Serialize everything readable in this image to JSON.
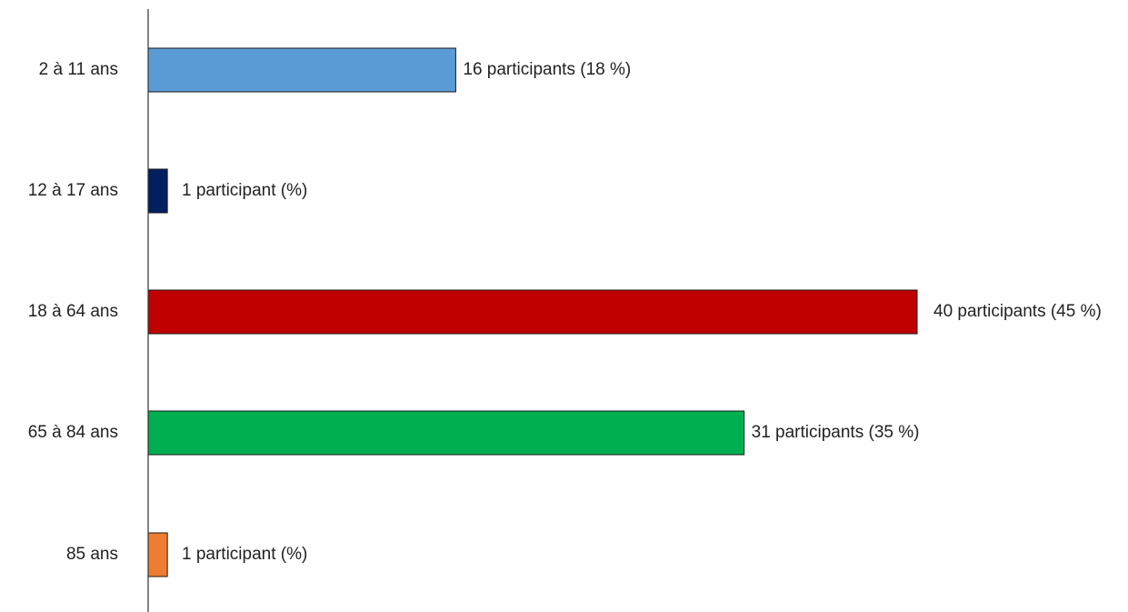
{
  "chart_data": {
    "type": "bar",
    "orientation": "horizontal",
    "categories": [
      "2 à 11 ans",
      "12 à 17 ans",
      "18 à 64 ans",
      "65 à 84 ans",
      "85 ans"
    ],
    "values": [
      16,
      1,
      40,
      31,
      1
    ],
    "data_labels": [
      "16 participants (18 %)",
      "1 participant (%)",
      "40 participants (45 %)",
      "31 participants (35 %)",
      "1 participant (%)"
    ],
    "colors": [
      "#5b9bd5",
      "#002060",
      "#c00000",
      "#00b050",
      "#ed7d31"
    ],
    "xlim": [
      0,
      40
    ],
    "grid": false,
    "legend": "none"
  }
}
